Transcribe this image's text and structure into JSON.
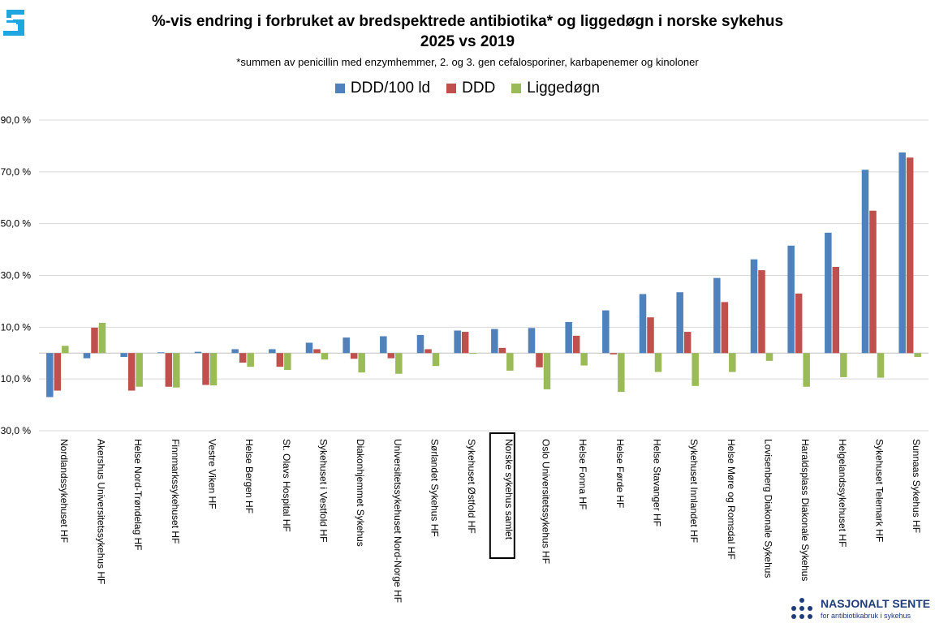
{
  "header": {
    "title": "%-vis endring i forbruket av bredspektrede antibiotika* og liggedøgn i norske sykehus",
    "title_line2": "2025 vs 2019",
    "subtitle": "*summen av penicillin med enzymhemmer, 2. og 3. gen cefalosporiner, karbapenemer og kinoloner"
  },
  "footer": {
    "org_name": "NASJONALT SENTE",
    "org_sub": "for antibiotikabruk i sykehus"
  },
  "colors": {
    "ddd_per_100": "#4f81bd",
    "ddd": "#c0504d",
    "liggedogn": "#9bbb59",
    "brand": "#1f3b7a"
  },
  "chart_data": {
    "type": "bar",
    "title": "%-vis endring i forbruket av bredspektrede antibiotika* og liggedøgn i norske sykehus 2025 vs 2019",
    "xlabel": "",
    "ylabel": "",
    "ylim": [
      -30,
      90
    ],
    "yticks": [
      {
        "value": 90,
        "label": "90,0 %"
      },
      {
        "value": 70,
        "label": "70,0 %"
      },
      {
        "value": 50,
        "label": "50,0 %"
      },
      {
        "value": 30,
        "label": "30,0 %"
      },
      {
        "value": 10,
        "label": "10,0 %"
      },
      {
        "value": -10,
        "label": "10,0 %"
      },
      {
        "value": -30,
        "label": "30,0 %"
      }
    ],
    "highlighted_category": "Norske sykehus samlet",
    "categories": [
      "Nordlandssykehuset HF",
      "Akershus Universitetssykehus HF",
      "Helse Nord-Trøndelag HF",
      "Finnmarkssykehuset HF",
      "Vestre Viken HF",
      "Helse Bergen HF",
      "St. Olavs Hospital HF",
      "Sykehuset i Vestfold HF",
      "Diakonhjemmet Sykehus",
      "Universitetssykehuset Nord-Norge HF",
      "Sørlandet Sykehus HF",
      "Sykehuset Østfold HF",
      "Norske sykehus samlet",
      "Oslo Universitetssykehus HF",
      "Helse Fonna HF",
      "Helse Førde HF",
      "Helse Stavanger HF",
      "Sykehuset Innlandet HF",
      "Helse Møre og Romsdal HF",
      "Lovisenberg Diakonale Sykehus",
      "Haraldsplass Diakonale Sykehus",
      "Helgelandssykehuset HF",
      "Sykehuset Telemark HF",
      "Sunnaas Sykehus HF"
    ],
    "series": [
      {
        "name": "DDD/100 ld",
        "color": "#4f81bd",
        "values": [
          -17,
          -2,
          -1.5,
          0.3,
          0.5,
          1.5,
          1.5,
          4,
          6,
          6.5,
          7,
          8.7,
          9.3,
          9.7,
          12,
          16.5,
          22.8,
          23.5,
          29,
          36.2,
          41.5,
          46.5,
          70.8,
          77.5
        ]
      },
      {
        "name": "DDD",
        "color": "#c0504d",
        "values": [
          -14.5,
          9.8,
          -14.5,
          -13,
          -12.3,
          -3.7,
          -5.3,
          1.5,
          -2.2,
          -2,
          1.5,
          8.2,
          2,
          -5.5,
          6.7,
          -0.5,
          13.8,
          8.2,
          19.7,
          32,
          23,
          33.3,
          55,
          75.5
        ]
      },
      {
        "name": "Liggedøgn",
        "color": "#9bbb59",
        "values": [
          2.8,
          11.7,
          -13,
          -13.3,
          -12.5,
          -5.3,
          -6.5,
          -2.5,
          -7.5,
          -8,
          -5,
          -0.3,
          -6.8,
          -14,
          -4.8,
          -15,
          -7.3,
          -12.7,
          -7.3,
          -3,
          -13,
          -9.3,
          -9.5,
          -1.5
        ]
      }
    ]
  }
}
